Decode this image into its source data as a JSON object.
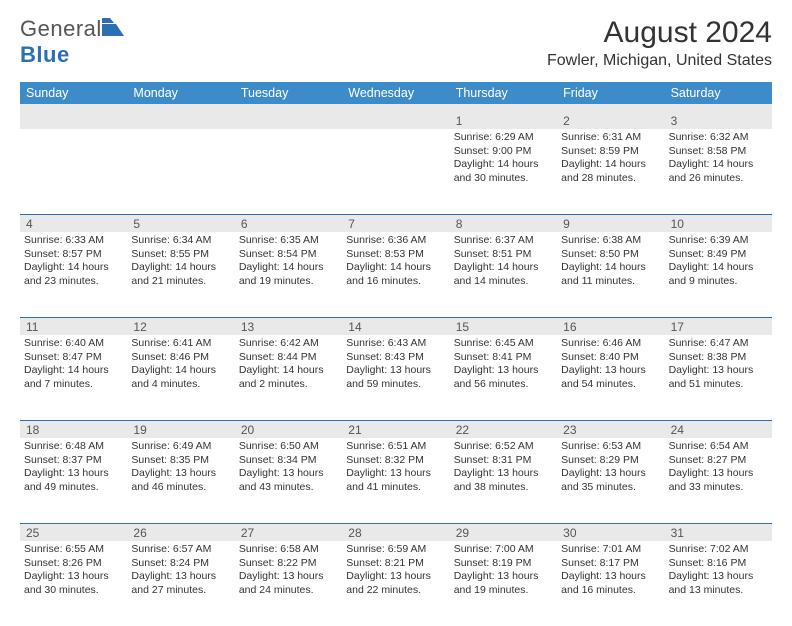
{
  "brand": {
    "general": "General",
    "blue": "Blue"
  },
  "title": "August 2024",
  "subtitle": "Fowler, Michigan, United States",
  "colors": {
    "header_bg": "#3d8cc9",
    "header_text": "#ffffff",
    "daynum_bg": "#e9e9e9",
    "divider": "#2d6fb5",
    "body_text": "#333333",
    "logo_gray": "#555555",
    "logo_blue": "#2d6fb5",
    "page_bg": "#ffffff"
  },
  "day_headers": [
    "Sunday",
    "Monday",
    "Tuesday",
    "Wednesday",
    "Thursday",
    "Friday",
    "Saturday"
  ],
  "weeks": [
    [
      null,
      null,
      null,
      null,
      {
        "d": "1",
        "sr": "Sunrise: 6:29 AM",
        "ss": "Sunset: 9:00 PM",
        "dl1": "Daylight: 14 hours",
        "dl2": "and 30 minutes."
      },
      {
        "d": "2",
        "sr": "Sunrise: 6:31 AM",
        "ss": "Sunset: 8:59 PM",
        "dl1": "Daylight: 14 hours",
        "dl2": "and 28 minutes."
      },
      {
        "d": "3",
        "sr": "Sunrise: 6:32 AM",
        "ss": "Sunset: 8:58 PM",
        "dl1": "Daylight: 14 hours",
        "dl2": "and 26 minutes."
      }
    ],
    [
      {
        "d": "4",
        "sr": "Sunrise: 6:33 AM",
        "ss": "Sunset: 8:57 PM",
        "dl1": "Daylight: 14 hours",
        "dl2": "and 23 minutes."
      },
      {
        "d": "5",
        "sr": "Sunrise: 6:34 AM",
        "ss": "Sunset: 8:55 PM",
        "dl1": "Daylight: 14 hours",
        "dl2": "and 21 minutes."
      },
      {
        "d": "6",
        "sr": "Sunrise: 6:35 AM",
        "ss": "Sunset: 8:54 PM",
        "dl1": "Daylight: 14 hours",
        "dl2": "and 19 minutes."
      },
      {
        "d": "7",
        "sr": "Sunrise: 6:36 AM",
        "ss": "Sunset: 8:53 PM",
        "dl1": "Daylight: 14 hours",
        "dl2": "and 16 minutes."
      },
      {
        "d": "8",
        "sr": "Sunrise: 6:37 AM",
        "ss": "Sunset: 8:51 PM",
        "dl1": "Daylight: 14 hours",
        "dl2": "and 14 minutes."
      },
      {
        "d": "9",
        "sr": "Sunrise: 6:38 AM",
        "ss": "Sunset: 8:50 PM",
        "dl1": "Daylight: 14 hours",
        "dl2": "and 11 minutes."
      },
      {
        "d": "10",
        "sr": "Sunrise: 6:39 AM",
        "ss": "Sunset: 8:49 PM",
        "dl1": "Daylight: 14 hours",
        "dl2": "and 9 minutes."
      }
    ],
    [
      {
        "d": "11",
        "sr": "Sunrise: 6:40 AM",
        "ss": "Sunset: 8:47 PM",
        "dl1": "Daylight: 14 hours",
        "dl2": "and 7 minutes."
      },
      {
        "d": "12",
        "sr": "Sunrise: 6:41 AM",
        "ss": "Sunset: 8:46 PM",
        "dl1": "Daylight: 14 hours",
        "dl2": "and 4 minutes."
      },
      {
        "d": "13",
        "sr": "Sunrise: 6:42 AM",
        "ss": "Sunset: 8:44 PM",
        "dl1": "Daylight: 14 hours",
        "dl2": "and 2 minutes."
      },
      {
        "d": "14",
        "sr": "Sunrise: 6:43 AM",
        "ss": "Sunset: 8:43 PM",
        "dl1": "Daylight: 13 hours",
        "dl2": "and 59 minutes."
      },
      {
        "d": "15",
        "sr": "Sunrise: 6:45 AM",
        "ss": "Sunset: 8:41 PM",
        "dl1": "Daylight: 13 hours",
        "dl2": "and 56 minutes."
      },
      {
        "d": "16",
        "sr": "Sunrise: 6:46 AM",
        "ss": "Sunset: 8:40 PM",
        "dl1": "Daylight: 13 hours",
        "dl2": "and 54 minutes."
      },
      {
        "d": "17",
        "sr": "Sunrise: 6:47 AM",
        "ss": "Sunset: 8:38 PM",
        "dl1": "Daylight: 13 hours",
        "dl2": "and 51 minutes."
      }
    ],
    [
      {
        "d": "18",
        "sr": "Sunrise: 6:48 AM",
        "ss": "Sunset: 8:37 PM",
        "dl1": "Daylight: 13 hours",
        "dl2": "and 49 minutes."
      },
      {
        "d": "19",
        "sr": "Sunrise: 6:49 AM",
        "ss": "Sunset: 8:35 PM",
        "dl1": "Daylight: 13 hours",
        "dl2": "and 46 minutes."
      },
      {
        "d": "20",
        "sr": "Sunrise: 6:50 AM",
        "ss": "Sunset: 8:34 PM",
        "dl1": "Daylight: 13 hours",
        "dl2": "and 43 minutes."
      },
      {
        "d": "21",
        "sr": "Sunrise: 6:51 AM",
        "ss": "Sunset: 8:32 PM",
        "dl1": "Daylight: 13 hours",
        "dl2": "and 41 minutes."
      },
      {
        "d": "22",
        "sr": "Sunrise: 6:52 AM",
        "ss": "Sunset: 8:31 PM",
        "dl1": "Daylight: 13 hours",
        "dl2": "and 38 minutes."
      },
      {
        "d": "23",
        "sr": "Sunrise: 6:53 AM",
        "ss": "Sunset: 8:29 PM",
        "dl1": "Daylight: 13 hours",
        "dl2": "and 35 minutes."
      },
      {
        "d": "24",
        "sr": "Sunrise: 6:54 AM",
        "ss": "Sunset: 8:27 PM",
        "dl1": "Daylight: 13 hours",
        "dl2": "and 33 minutes."
      }
    ],
    [
      {
        "d": "25",
        "sr": "Sunrise: 6:55 AM",
        "ss": "Sunset: 8:26 PM",
        "dl1": "Daylight: 13 hours",
        "dl2": "and 30 minutes."
      },
      {
        "d": "26",
        "sr": "Sunrise: 6:57 AM",
        "ss": "Sunset: 8:24 PM",
        "dl1": "Daylight: 13 hours",
        "dl2": "and 27 minutes."
      },
      {
        "d": "27",
        "sr": "Sunrise: 6:58 AM",
        "ss": "Sunset: 8:22 PM",
        "dl1": "Daylight: 13 hours",
        "dl2": "and 24 minutes."
      },
      {
        "d": "28",
        "sr": "Sunrise: 6:59 AM",
        "ss": "Sunset: 8:21 PM",
        "dl1": "Daylight: 13 hours",
        "dl2": "and 22 minutes."
      },
      {
        "d": "29",
        "sr": "Sunrise: 7:00 AM",
        "ss": "Sunset: 8:19 PM",
        "dl1": "Daylight: 13 hours",
        "dl2": "and 19 minutes."
      },
      {
        "d": "30",
        "sr": "Sunrise: 7:01 AM",
        "ss": "Sunset: 8:17 PM",
        "dl1": "Daylight: 13 hours",
        "dl2": "and 16 minutes."
      },
      {
        "d": "31",
        "sr": "Sunrise: 7:02 AM",
        "ss": "Sunset: 8:16 PM",
        "dl1": "Daylight: 13 hours",
        "dl2": "and 13 minutes."
      }
    ]
  ]
}
